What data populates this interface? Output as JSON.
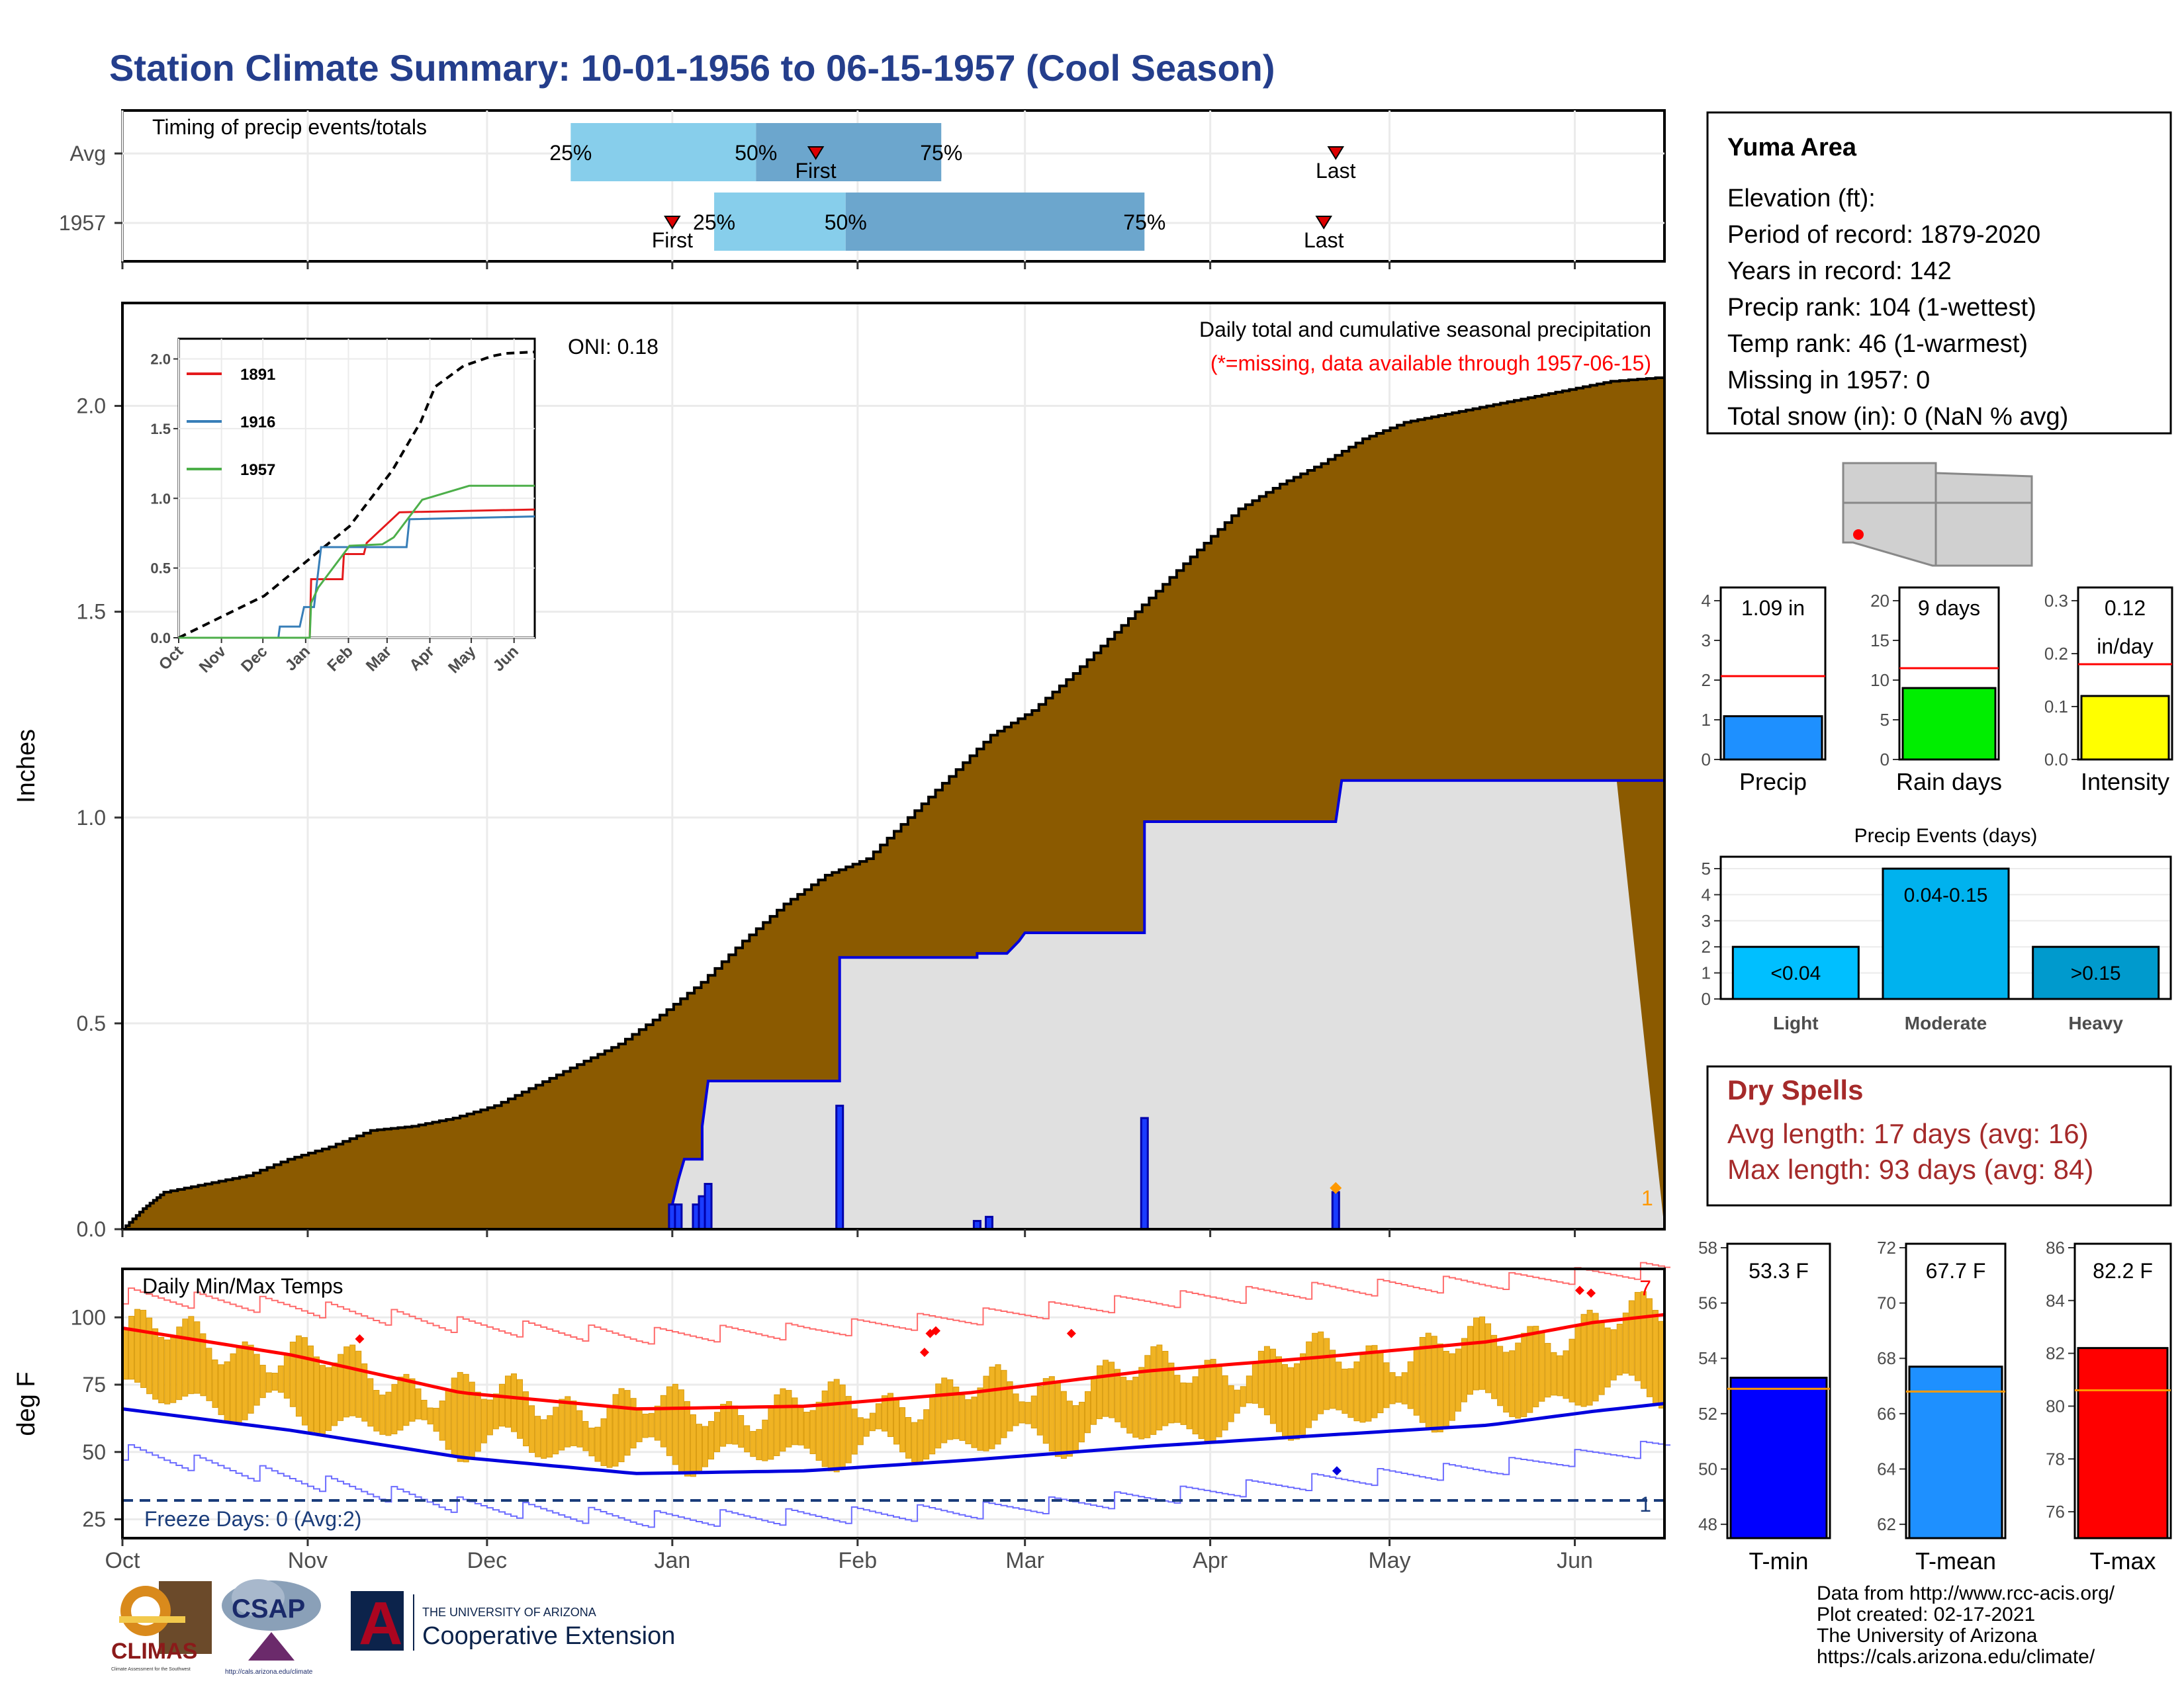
{
  "title": "Station Climate Summary: 10-01-1956 to 06-15-1957 (Cool Season)",
  "chart_data": [
    {
      "id": "timing",
      "type": "bar",
      "title": "Timing of precip events/totals",
      "rows": [
        {
          "label": "Avg",
          "first": "1957-01-25",
          "last": "1957-04-22",
          "p25": "1956-12-15",
          "p50": "1957-01-15",
          "p75": "1957-02-15",
          "pct_labels": [
            "25%",
            "50%",
            "75%"
          ],
          "marker_labels": [
            "First",
            "Last"
          ]
        },
        {
          "label": "1957",
          "first": "1957-01-01",
          "last": "1957-04-20",
          "p25": "1957-01-08",
          "p50": "1957-01-30",
          "p75": "1957-03-21",
          "pct_labels": [
            "25%",
            "50%",
            "75%"
          ],
          "marker_labels": [
            "First",
            "Last"
          ]
        }
      ],
      "colors": {
        "early": "#87ceeb",
        "late": "#6ca6cd",
        "marker": "#dd0000"
      }
    },
    {
      "id": "precip",
      "type": "area",
      "title": "Daily total and cumulative seasonal precipitation",
      "subtitle": "(*=missing, data available through 1957-06-15)",
      "oni": "ONI: 0.18",
      "ylabel": "Inches",
      "ylim": [
        0,
        2.25
      ],
      "yticks": [
        0.0,
        0.5,
        1.0,
        1.5,
        2.0
      ],
      "ytick_labels": [
        "0.0",
        "0.5",
        "1.0",
        "1.5",
        "2.0"
      ],
      "x_labels": [
        "Oct",
        "Nov",
        "Dec",
        "Jan",
        "Feb",
        "Mar",
        "Apr",
        "May",
        "Jun"
      ],
      "avg_cumulative": [
        [
          0,
          0
        ],
        [
          5,
          0.05
        ],
        [
          10,
          0.09
        ],
        [
          20,
          0.11
        ],
        [
          30,
          0.13
        ],
        [
          40,
          0.17
        ],
        [
          50,
          0.2
        ],
        [
          60,
          0.24
        ],
        [
          70,
          0.25
        ],
        [
          80,
          0.27
        ],
        [
          90,
          0.3
        ],
        [
          100,
          0.35
        ],
        [
          110,
          0.4
        ],
        [
          120,
          0.45
        ],
        [
          130,
          0.52
        ],
        [
          140,
          0.6
        ],
        [
          150,
          0.7
        ],
        [
          160,
          0.79
        ],
        [
          170,
          0.86
        ],
        [
          180,
          0.9
        ],
        [
          190,
          1.0
        ],
        [
          200,
          1.1
        ],
        [
          210,
          1.2
        ],
        [
          220,
          1.26
        ],
        [
          230,
          1.35
        ],
        [
          240,
          1.45
        ],
        [
          250,
          1.55
        ],
        [
          260,
          1.65
        ],
        [
          270,
          1.75
        ],
        [
          280,
          1.81
        ],
        [
          290,
          1.86
        ],
        [
          300,
          1.92
        ],
        [
          310,
          1.96
        ],
        [
          320,
          1.98
        ],
        [
          330,
          2.0
        ],
        [
          340,
          2.02
        ],
        [
          350,
          2.04
        ],
        [
          360,
          2.06
        ],
        [
          373,
          2.07
        ]
      ],
      "observed_cumulative": [
        [
          0,
          0
        ],
        [
          92,
          0
        ],
        [
          92,
          0.06
        ],
        [
          93,
          0.12
        ],
        [
          94,
          0.17
        ],
        [
          97,
          0.17
        ],
        [
          97,
          0.25
        ],
        [
          98,
          0.36
        ],
        [
          99,
          0.36
        ],
        [
          120,
          0.36
        ],
        [
          120,
          0.66
        ],
        [
          143,
          0.66
        ],
        [
          143,
          0.67
        ],
        [
          148,
          0.67
        ],
        [
          150,
          0.7
        ],
        [
          151,
          0.72
        ],
        [
          163,
          0.72
        ],
        [
          171,
          0.72
        ],
        [
          171,
          0.99
        ],
        [
          203,
          0.99
        ],
        [
          204,
          1.09
        ],
        [
          250,
          1.09
        ]
      ],
      "daily_events": [
        [
          92,
          0.06
        ],
        [
          93,
          0.06
        ],
        [
          96,
          0.06
        ],
        [
          97,
          0.08
        ],
        [
          98,
          0.11
        ],
        [
          120,
          0.3
        ],
        [
          143,
          0.02
        ],
        [
          145,
          0.03
        ],
        [
          171,
          0.27
        ],
        [
          203,
          0.09
        ]
      ],
      "missing_marker": [
        203,
        0.1
      ],
      "corner_count": "1",
      "colors": {
        "avg_fill": "#8b5a00",
        "observed_fill": "#e0e0e0",
        "observed_line": "#0000dd",
        "event": "#1a3cff"
      }
    },
    {
      "id": "inset",
      "type": "line",
      "x_labels": [
        "Oct",
        "Nov",
        "Dec",
        "Jan",
        "Feb",
        "Mar",
        "Apr",
        "May",
        "Jun"
      ],
      "ylim": [
        0,
        2.05
      ],
      "yticks": [
        0.0,
        0.5,
        1.0,
        1.5,
        2.0
      ],
      "ytick_labels": [
        "0.0",
        "0.5",
        "1.0",
        "1.5",
        "2.0"
      ],
      "average": [
        [
          0,
          0
        ],
        [
          30,
          0.15
        ],
        [
          60,
          0.3
        ],
        [
          90,
          0.55
        ],
        [
          120,
          0.8
        ],
        [
          150,
          1.2
        ],
        [
          170,
          1.55
        ],
        [
          180,
          1.8
        ],
        [
          200,
          1.95
        ],
        [
          220,
          2.02
        ],
        [
          230,
          2.04
        ],
        [
          250,
          2.05
        ]
      ],
      "series": [
        {
          "name": "1891",
          "color": "#e41a1c",
          "points": [
            [
              0,
              0
            ],
            [
              92,
              0
            ],
            [
              93,
              0.42
            ],
            [
              115,
              0.42
            ],
            [
              116,
              0.6
            ],
            [
              130,
              0.6
            ],
            [
              132,
              0.68
            ],
            [
              155,
              0.9
            ],
            [
              250,
              0.92
            ]
          ]
        },
        {
          "name": "1916",
          "color": "#377eb8",
          "points": [
            [
              0,
              0
            ],
            [
              70,
              0
            ],
            [
              71,
              0.08
            ],
            [
              85,
              0.08
            ],
            [
              88,
              0.22
            ],
            [
              95,
              0.22
            ],
            [
              100,
              0.65
            ],
            [
              160,
              0.65
            ],
            [
              162,
              0.85
            ],
            [
              250,
              0.87
            ]
          ]
        },
        {
          "name": "1957",
          "color": "#4daf4a",
          "points": [
            [
              0,
              0
            ],
            [
              92,
              0
            ],
            [
              93,
              0.25
            ],
            [
              98,
              0.36
            ],
            [
              120,
              0.66
            ],
            [
              143,
              0.67
            ],
            [
              151,
              0.72
            ],
            [
              171,
              0.99
            ],
            [
              204,
              1.09
            ],
            [
              250,
              1.09
            ]
          ]
        }
      ]
    },
    {
      "id": "temps",
      "type": "bar",
      "title": "Daily Min/Max Temps",
      "ylabel": "deg F",
      "yticks": [
        25,
        50,
        75,
        100
      ],
      "ytick_labels": [
        "25",
        "50",
        "75",
        "100"
      ],
      "ylim": [
        18,
        118
      ],
      "x_labels": [
        "Oct",
        "Nov",
        "Dec",
        "Jan",
        "Feb",
        "Mar",
        "Apr",
        "May",
        "Jun"
      ],
      "freeze_text": "Freeze Days: 0 (Avg:2)",
      "freeze_line": 32,
      "count_top": "7",
      "count_bottom": "1",
      "avg_max": [
        [
          0,
          96
        ],
        [
          30,
          86
        ],
        [
          60,
          72
        ],
        [
          91,
          66
        ],
        [
          121,
          67
        ],
        [
          150,
          72
        ],
        [
          181,
          80
        ],
        [
          211,
          85
        ],
        [
          242,
          91
        ],
        [
          260,
          98
        ],
        [
          273,
          101
        ]
      ],
      "avg_min": [
        [
          0,
          66
        ],
        [
          30,
          58
        ],
        [
          60,
          48
        ],
        [
          91,
          42
        ],
        [
          121,
          43
        ],
        [
          150,
          47
        ],
        [
          181,
          52
        ],
        [
          211,
          56
        ],
        [
          242,
          60
        ],
        [
          260,
          65
        ],
        [
          273,
          68
        ]
      ],
      "record_max": [
        [
          0,
          108
        ],
        [
          30,
          104
        ],
        [
          60,
          97
        ],
        [
          91,
          93
        ],
        [
          121,
          95
        ],
        [
          150,
          100
        ],
        [
          181,
          106
        ],
        [
          211,
          110
        ],
        [
          242,
          113
        ],
        [
          273,
          118
        ]
      ],
      "record_min": [
        [
          0,
          50
        ],
        [
          30,
          40
        ],
        [
          60,
          30
        ],
        [
          91,
          25
        ],
        [
          121,
          26
        ],
        [
          150,
          28
        ],
        [
          181,
          33
        ],
        [
          211,
          39
        ],
        [
          242,
          44
        ],
        [
          273,
          52
        ]
      ],
      "record_markers": [
        [
          42,
          92
        ],
        [
          142,
          87
        ],
        [
          143,
          94
        ],
        [
          144,
          95
        ],
        [
          168,
          94
        ],
        [
          258,
          110
        ],
        [
          260,
          109
        ]
      ],
      "low_marker": [
        215,
        43
      ],
      "colors": {
        "range": "#f0b323",
        "avg_max": "#ff0000",
        "avg_min": "#0000dd",
        "record_max": "#ff6b6b",
        "record_min": "#6b6bff"
      }
    },
    {
      "id": "totals",
      "type": "bar",
      "panels": [
        {
          "category": "Precip",
          "value": 1.09,
          "avg": 2.1,
          "label": "1.09 in",
          "ylim": [
            0,
            4
          ],
          "yticks": [
            "0",
            "1",
            "2",
            "3",
            "4"
          ],
          "color": "#1e90ff"
        },
        {
          "category": "Rain days",
          "value": 9,
          "avg": 11.5,
          "label": "9 days",
          "ylim": [
            0,
            20
          ],
          "yticks": [
            "0",
            "5",
            "10",
            "15",
            "20"
          ],
          "color": "#00ee00"
        },
        {
          "category": "Intensity",
          "value": 0.12,
          "avg": 0.18,
          "label": "0.12",
          "label2": "in/day",
          "ylim": [
            0,
            0.3
          ],
          "yticks": [
            "0.0",
            "0.1",
            "0.2",
            "0.3"
          ],
          "color": "#ffff00"
        }
      ]
    },
    {
      "id": "events",
      "type": "bar",
      "title": "Precip Events (days)",
      "categories": [
        "Light",
        "Moderate",
        "Heavy"
      ],
      "values": [
        2,
        5,
        2
      ],
      "labels": [
        "<0.04",
        "0.04-0.15",
        ">0.15"
      ],
      "ylim": [
        0,
        5
      ],
      "yticks": [
        "0",
        "1",
        "2",
        "3",
        "4",
        "5"
      ],
      "colors": [
        "#00bfff",
        "#00b2ee",
        "#009acd"
      ]
    },
    {
      "id": "temp_summary",
      "type": "bar",
      "panels": [
        {
          "category": "T-min",
          "value": 53.3,
          "avg": 52.9,
          "label": "53.3 F",
          "ylim": [
            47.5,
            58
          ],
          "yticks": [
            48,
            50,
            52,
            54,
            56,
            58
          ],
          "color": "#0000ff"
        },
        {
          "category": "T-mean",
          "value": 67.7,
          "avg": 66.8,
          "label": "67.7 F",
          "ylim": [
            61.5,
            72
          ],
          "yticks": [
            62,
            64,
            66,
            68,
            70,
            72
          ],
          "color": "#1e90ff"
        },
        {
          "category": "T-max",
          "value": 82.2,
          "avg": 80.6,
          "label": "82.2 F",
          "ylim": [
            75,
            86
          ],
          "yticks": [
            76,
            78,
            80,
            82,
            84,
            86
          ],
          "color": "#ff0000"
        }
      ]
    }
  ],
  "station": {
    "name": "Yuma Area",
    "lines": [
      "Elevation (ft):",
      "Period of record: 1879-2020",
      "Years in record: 142",
      "Precip rank: 104 (1-wettest)",
      "Temp rank: 46 (1-warmest)",
      "Missing in 1957: 0",
      "Total snow (in): 0 (NaN % avg)"
    ]
  },
  "dry_spells": {
    "title": "Dry Spells",
    "avg": "Avg length: 17 days (avg: 16)",
    "max": "Max length: 93 days (avg: 84)"
  },
  "credits": [
    "Data from http://www.rcc-acis.org/",
    "Plot created: 02-17-2021",
    "The University of Arizona",
    "https://cals.arizona.edu/climate/"
  ],
  "logos": {
    "climas": "CLIMAS",
    "climas_sub": "Climate Assessment for the Southwest",
    "csap": "CSAP",
    "csap_url": "http://cals.arizona.edu/climate",
    "ua_line1": "THE UNIVERSITY OF ARIZONA",
    "ua_line2": "Cooperative Extension",
    "ua_letter": "A"
  }
}
